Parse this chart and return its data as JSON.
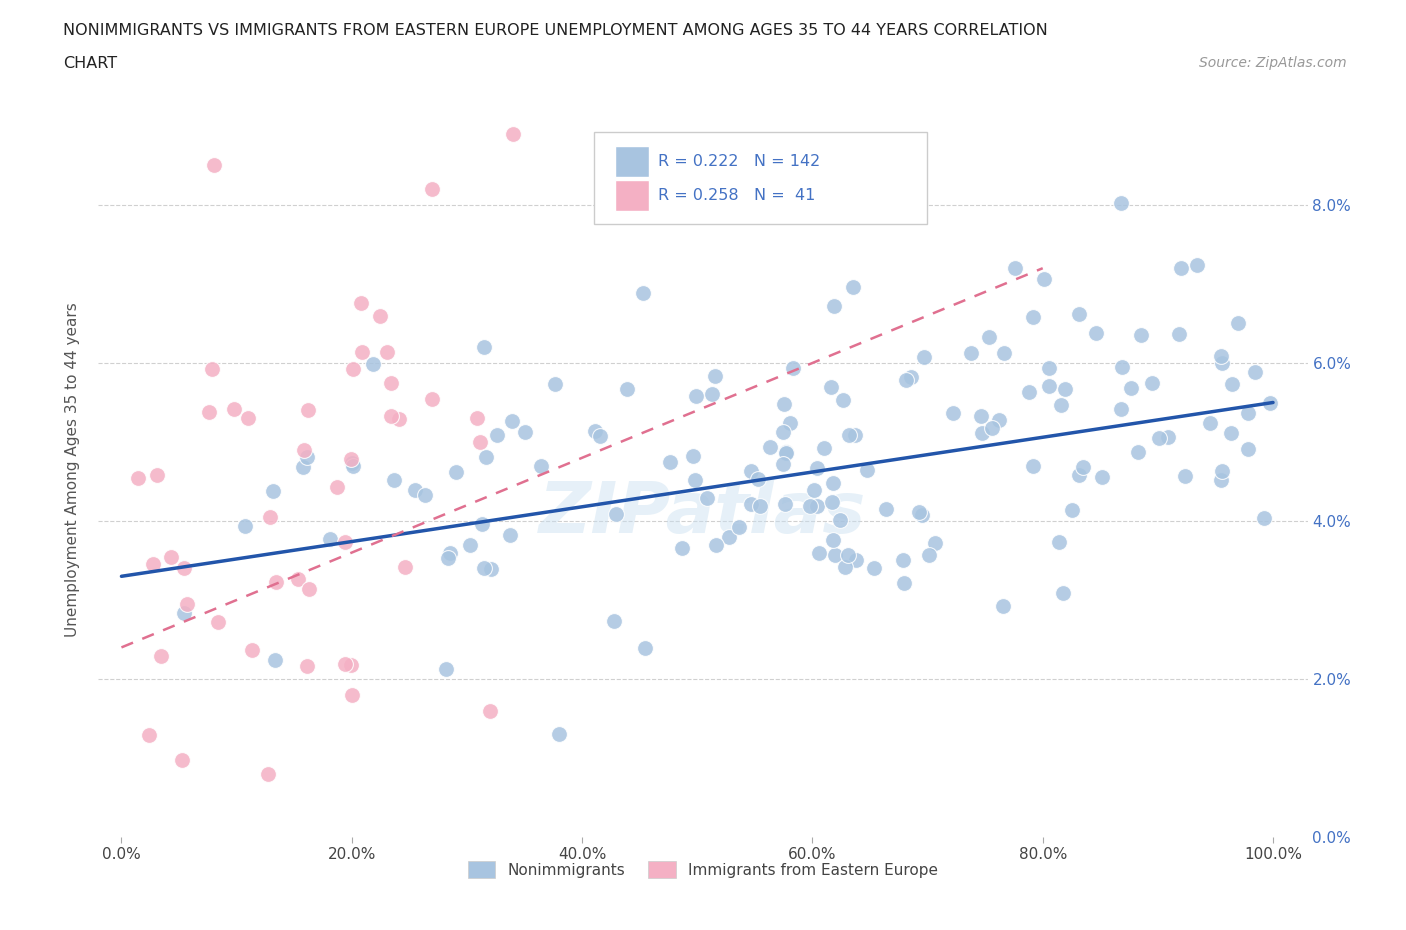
{
  "title_line1": "NONIMMIGRANTS VS IMMIGRANTS FROM EASTERN EUROPE UNEMPLOYMENT AMONG AGES 35 TO 44 YEARS CORRELATION",
  "title_line2": "CHART",
  "source_text": "Source: ZipAtlas.com",
  "ylabel": "Unemployment Among Ages 35 to 44 years",
  "ytick_vals": [
    0.0,
    0.02,
    0.04,
    0.06,
    0.08
  ],
  "ytick_labels": [
    "0.0%",
    "2.0%",
    "4.0%",
    "6.0%",
    "8.0%"
  ],
  "xtick_vals": [
    0.0,
    0.2,
    0.4,
    0.6,
    0.8,
    1.0
  ],
  "xtick_labels": [
    "0.0%",
    "20.0%",
    "40.0%",
    "60.0%",
    "80.0%",
    "100.0%"
  ],
  "legend_R_blue": "0.222",
  "legend_N_blue": "142",
  "legend_R_pink": "0.258",
  "legend_N_pink": "41",
  "blue_color": "#a8c4e0",
  "blue_line_color": "#2255aa",
  "pink_color": "#f4b0c4",
  "pink_line_color": "#e07090",
  "watermark": "ZIPatlas",
  "blue_seed": 1234,
  "pink_seed": 5678,
  "xmin": -0.02,
  "xmax": 1.03,
  "ymin": 0.005,
  "ymax": 0.093
}
